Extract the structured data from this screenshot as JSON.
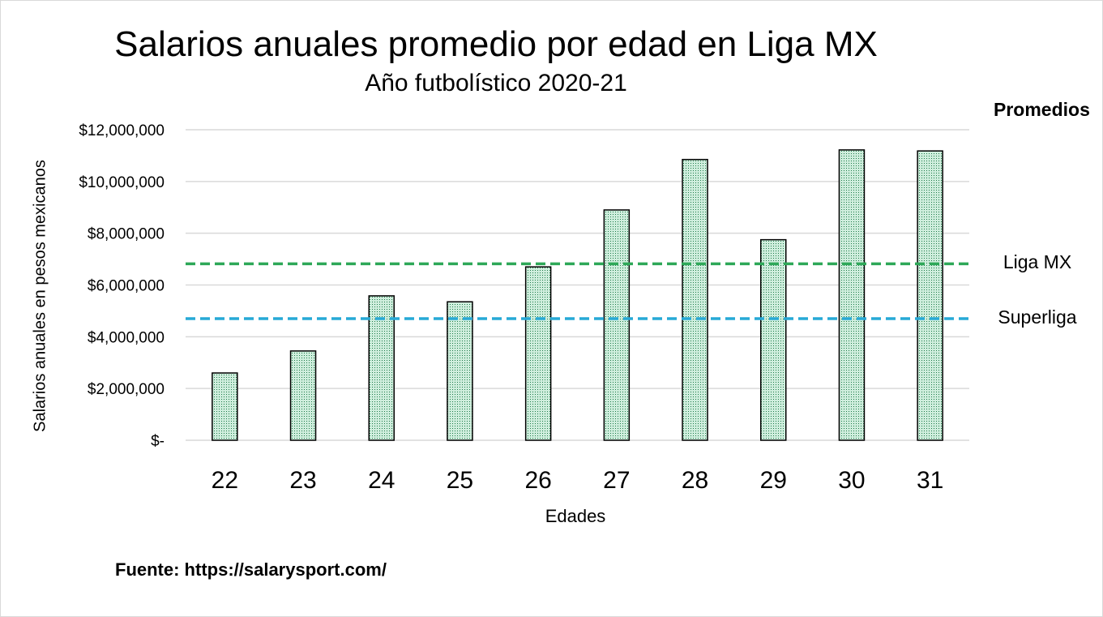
{
  "chart_data": {
    "type": "bar",
    "title": "Salarios anuales promedio por edad en Liga MX",
    "subtitle": "Año futbolístico 2020-21",
    "xlabel": "Edades",
    "ylabel": "Salarios anuales en pesos mexicanos",
    "categories": [
      "22",
      "23",
      "24",
      "25",
      "26",
      "27",
      "28",
      "29",
      "30",
      "31"
    ],
    "values": [
      2600000,
      3450000,
      5580000,
      5350000,
      6700000,
      8900000,
      10850000,
      7750000,
      11220000,
      11180000
    ],
    "ylim": [
      0,
      12000000
    ],
    "yticks": [
      0,
      2000000,
      4000000,
      6000000,
      8000000,
      10000000,
      12000000
    ],
    "ytick_labels": [
      "$-",
      "$2,000,000",
      "$4,000,000",
      "$6,000,000",
      "$8,000,000",
      "$10,000,000",
      "$12,000,000"
    ],
    "grid": true,
    "bar_fill": "#cfeedd",
    "bar_dot": "#1f7a4a",
    "bar_edge": "#000000",
    "reference_lines": [
      {
        "label": "Liga MX",
        "value": 6820000,
        "color": "#2ea858"
      },
      {
        "label": "Superliga",
        "value": 4700000,
        "color": "#27a9d6"
      }
    ],
    "reference_heading": "Promedios"
  },
  "footer": {
    "source": "Fuente: https://salarysport.com/"
  }
}
